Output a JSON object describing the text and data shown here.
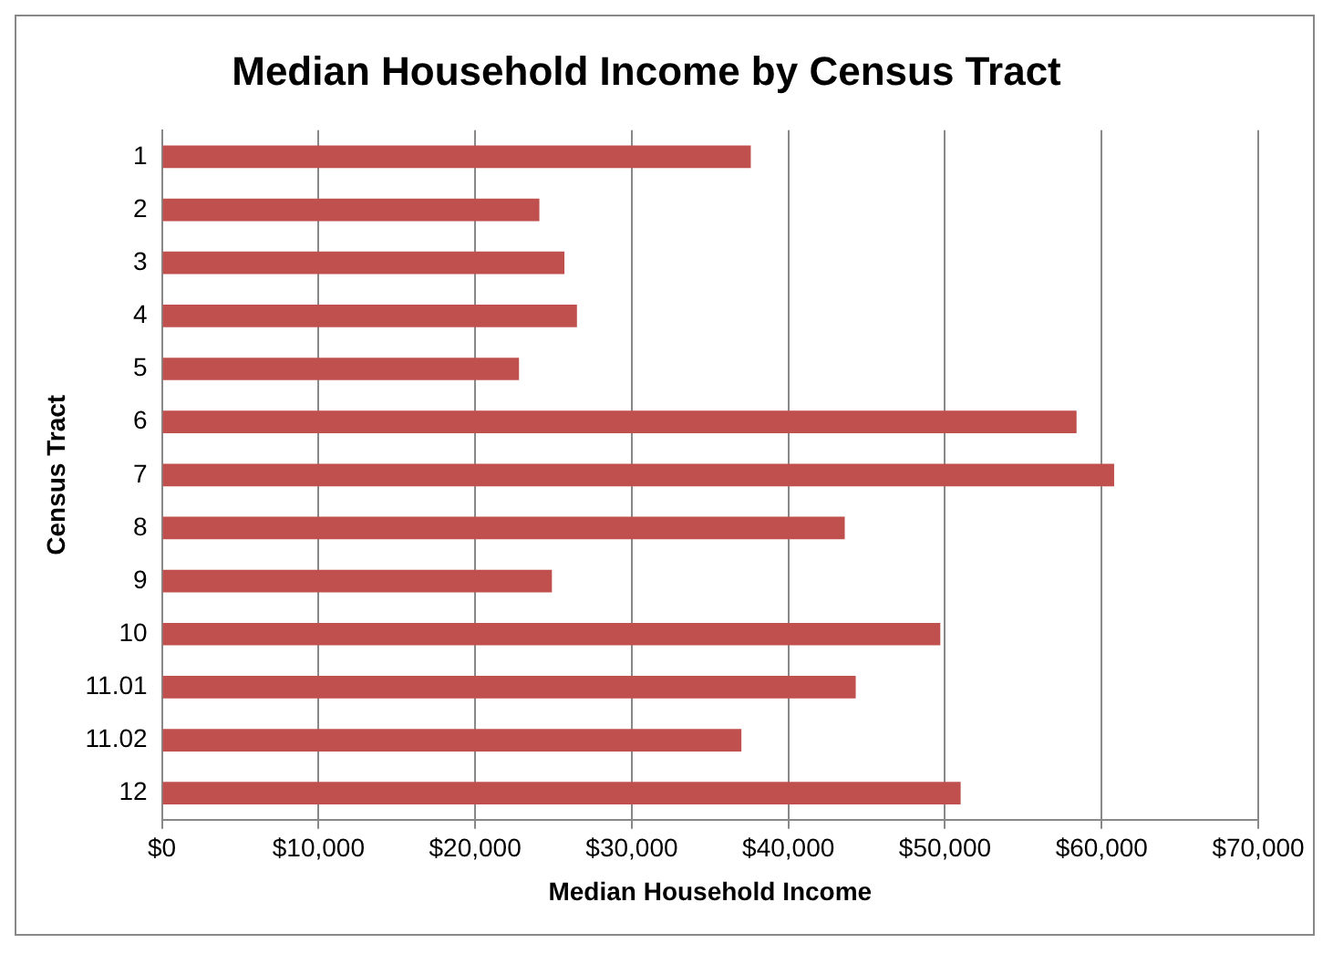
{
  "chart_data": {
    "type": "bar",
    "orientation": "horizontal",
    "title": "Median Household Income by Census Tract",
    "xlabel": "Median Household Income",
    "ylabel": "Census Tract",
    "categories": [
      "1",
      "2",
      "3",
      "4",
      "5",
      "6",
      "7",
      "8",
      "9",
      "10",
      "11.01",
      "11.02",
      "12"
    ],
    "values": [
      37600,
      24100,
      25700,
      26500,
      22800,
      58400,
      60800,
      43600,
      24900,
      49700,
      44300,
      37000,
      51000
    ],
    "color": "#c0504d",
    "xlim": [
      0,
      70000
    ],
    "xticks": [
      {
        "value": 0,
        "label": "$0"
      },
      {
        "value": 10000,
        "label": "$10,000"
      },
      {
        "value": 20000,
        "label": "$20,000"
      },
      {
        "value": 30000,
        "label": "$30,000"
      },
      {
        "value": 40000,
        "label": "$40,000"
      },
      {
        "value": 50000,
        "label": "$50,000"
      },
      {
        "value": 60000,
        "label": "$60,000"
      },
      {
        "value": 70000,
        "label": "$70,000"
      }
    ],
    "grid": "x",
    "legend": false
  }
}
